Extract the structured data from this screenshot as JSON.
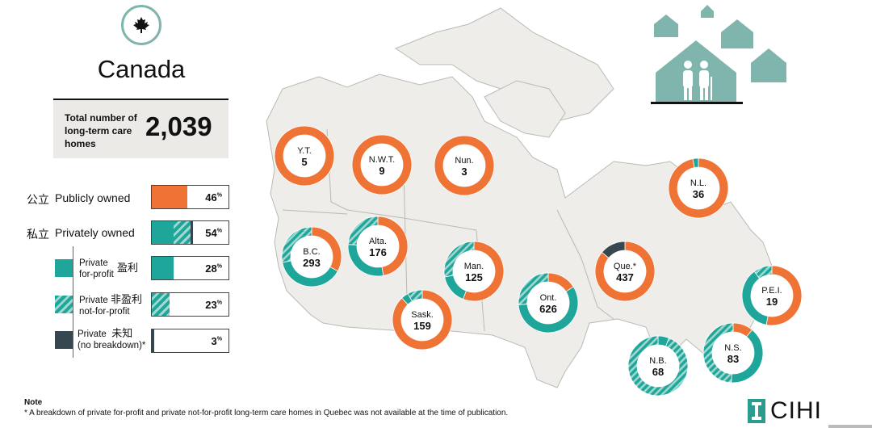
{
  "header": {
    "country": "Canada",
    "total_label": "Total number of long-term care homes",
    "total_value": "2,039",
    "emblem_icon": "maple-leaf-icon",
    "houses_icon": "houses-with-seniors-icon"
  },
  "legend": {
    "public": {
      "zh": "公立",
      "en": "Publicly owned",
      "pct": "46",
      "pct_unit": "%"
    },
    "private": {
      "zh": "私立",
      "en": "Privately owned",
      "pct": "54",
      "pct_unit": "%"
    },
    "for_profit": {
      "en1": "Private",
      "en2": "for-profit",
      "zh": "盈利",
      "pct": "28",
      "pct_unit": "%"
    },
    "not_for_profit": {
      "en1": "Private",
      "en2": "not-for-profit",
      "zh": "非盈利",
      "pct": "23",
      "pct_unit": "%"
    },
    "no_breakdown": {
      "en1": "Private",
      "en2": "(no breakdown)*",
      "zh": "未知",
      "pct": "3",
      "pct_unit": "%"
    }
  },
  "colors": {
    "public": "#f07336",
    "for_profit": "#1fa69a",
    "not_for_profit_light": "#9fd8d1",
    "no_breakdown": "#37474f",
    "land": "#eeedea",
    "land_border": "#b9b9b5",
    "accent_teal": "#7fb5ad"
  },
  "chart_data": {
    "type": "pie",
    "series_order": [
      "Publicly owned",
      "Private for-profit",
      "Private not-for-profit",
      "Private (no breakdown)"
    ],
    "provinces": [
      {
        "abbr": "Y.T.",
        "total": "5",
        "shares": [
          1.0,
          0,
          0,
          0
        ]
      },
      {
        "abbr": "N.W.T.",
        "total": "9",
        "shares": [
          1.0,
          0,
          0,
          0
        ]
      },
      {
        "abbr": "Nun.",
        "total": "3",
        "shares": [
          1.0,
          0,
          0,
          0
        ]
      },
      {
        "abbr": "B.C.",
        "total": "293",
        "shares": [
          0.33,
          0.39,
          0.28,
          0
        ]
      },
      {
        "abbr": "Alta.",
        "total": "176",
        "shares": [
          0.47,
          0.29,
          0.24,
          0
        ]
      },
      {
        "abbr": "Sask.",
        "total": "159",
        "shares": [
          0.88,
          0.04,
          0.08,
          0
        ]
      },
      {
        "abbr": "Man.",
        "total": "125",
        "shares": [
          0.56,
          0.16,
          0.28,
          0
        ]
      },
      {
        "abbr": "Ont.",
        "total": "626",
        "shares": [
          0.16,
          0.58,
          0.26,
          0
        ]
      },
      {
        "abbr": "Que.*",
        "total": "437",
        "shares": [
          0.86,
          0,
          0,
          0.14
        ]
      },
      {
        "abbr": "N.L.",
        "total": "36",
        "shares": [
          0.97,
          0.03,
          0,
          0
        ]
      },
      {
        "abbr": "P.E.I.",
        "total": "19",
        "shares": [
          0.53,
          0.37,
          0.1,
          0
        ]
      },
      {
        "abbr": "N.S.",
        "total": "83",
        "shares": [
          0.11,
          0.4,
          0.49,
          0
        ]
      },
      {
        "abbr": "N.B.",
        "total": "68",
        "shares": [
          0,
          0.06,
          0.94,
          0
        ]
      }
    ]
  },
  "note": {
    "title": "Note",
    "text": "* A breakdown of private for-profit and private not-for-profit long-term care homes in Quebec was not available at the time of publication."
  },
  "logo": {
    "text": "CIHI"
  }
}
